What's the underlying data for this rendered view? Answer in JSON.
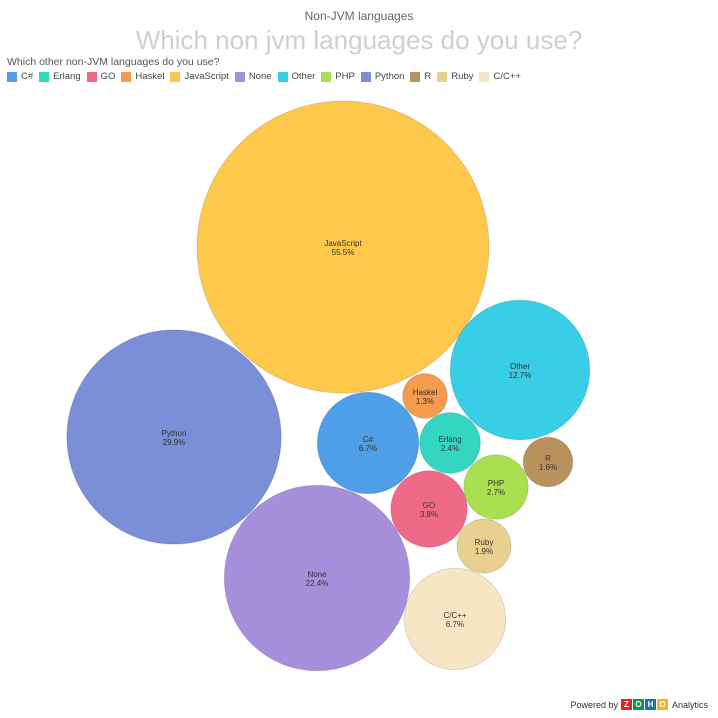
{
  "header": {
    "chart_name": "Non-JVM languages",
    "question": "Which non jvm languages do you use?",
    "legend_title": "Which other non-JVM languages do you use?"
  },
  "footer": {
    "powered_by": "Powered by",
    "brand": "ZOHO",
    "product": "Analytics"
  },
  "chart_data": {
    "type": "bubble",
    "title": "Non-JVM languages",
    "subtitle": "Which non jvm languages do you use?",
    "legend_title": "Which other non-JVM languages do you use?",
    "legend_placement": "top-left",
    "series": [
      {
        "name": "C#",
        "value": 6.7,
        "label": "6.7%",
        "color": "#4f9fe8"
      },
      {
        "name": "Erlang",
        "value": 2.4,
        "label": "2.4%",
        "color": "#33d6c0"
      },
      {
        "name": "GO",
        "value": 3.8,
        "label": "3.8%",
        "color": "#ee6a88"
      },
      {
        "name": "Haskel",
        "value": 1.3,
        "label": "1.3%",
        "color": "#f59b4e"
      },
      {
        "name": "JavaScript",
        "value": 55.5,
        "label": "55.5%",
        "color": "#fec84d"
      },
      {
        "name": "None",
        "value": 22.4,
        "label": "22.4%",
        "color": "#a68fdb"
      },
      {
        "name": "Other",
        "value": 12.7,
        "label": "12.7%",
        "color": "#38cfe6"
      },
      {
        "name": "PHP",
        "value": 2.7,
        "label": "2.7%",
        "color": "#a8e052"
      },
      {
        "name": "Python",
        "value": 29.9,
        "label": "29.9%",
        "color": "#7b8fd9"
      },
      {
        "name": "R",
        "value": 1.6,
        "label": "1.6%",
        "color": "#b9915c"
      },
      {
        "name": "Ruby",
        "value": 1.9,
        "label": "1.9%",
        "color": "#ead090"
      },
      {
        "name": "C/C++",
        "value": 6.7,
        "label": "6.7%",
        "color": "#f7e6c4"
      }
    ]
  }
}
